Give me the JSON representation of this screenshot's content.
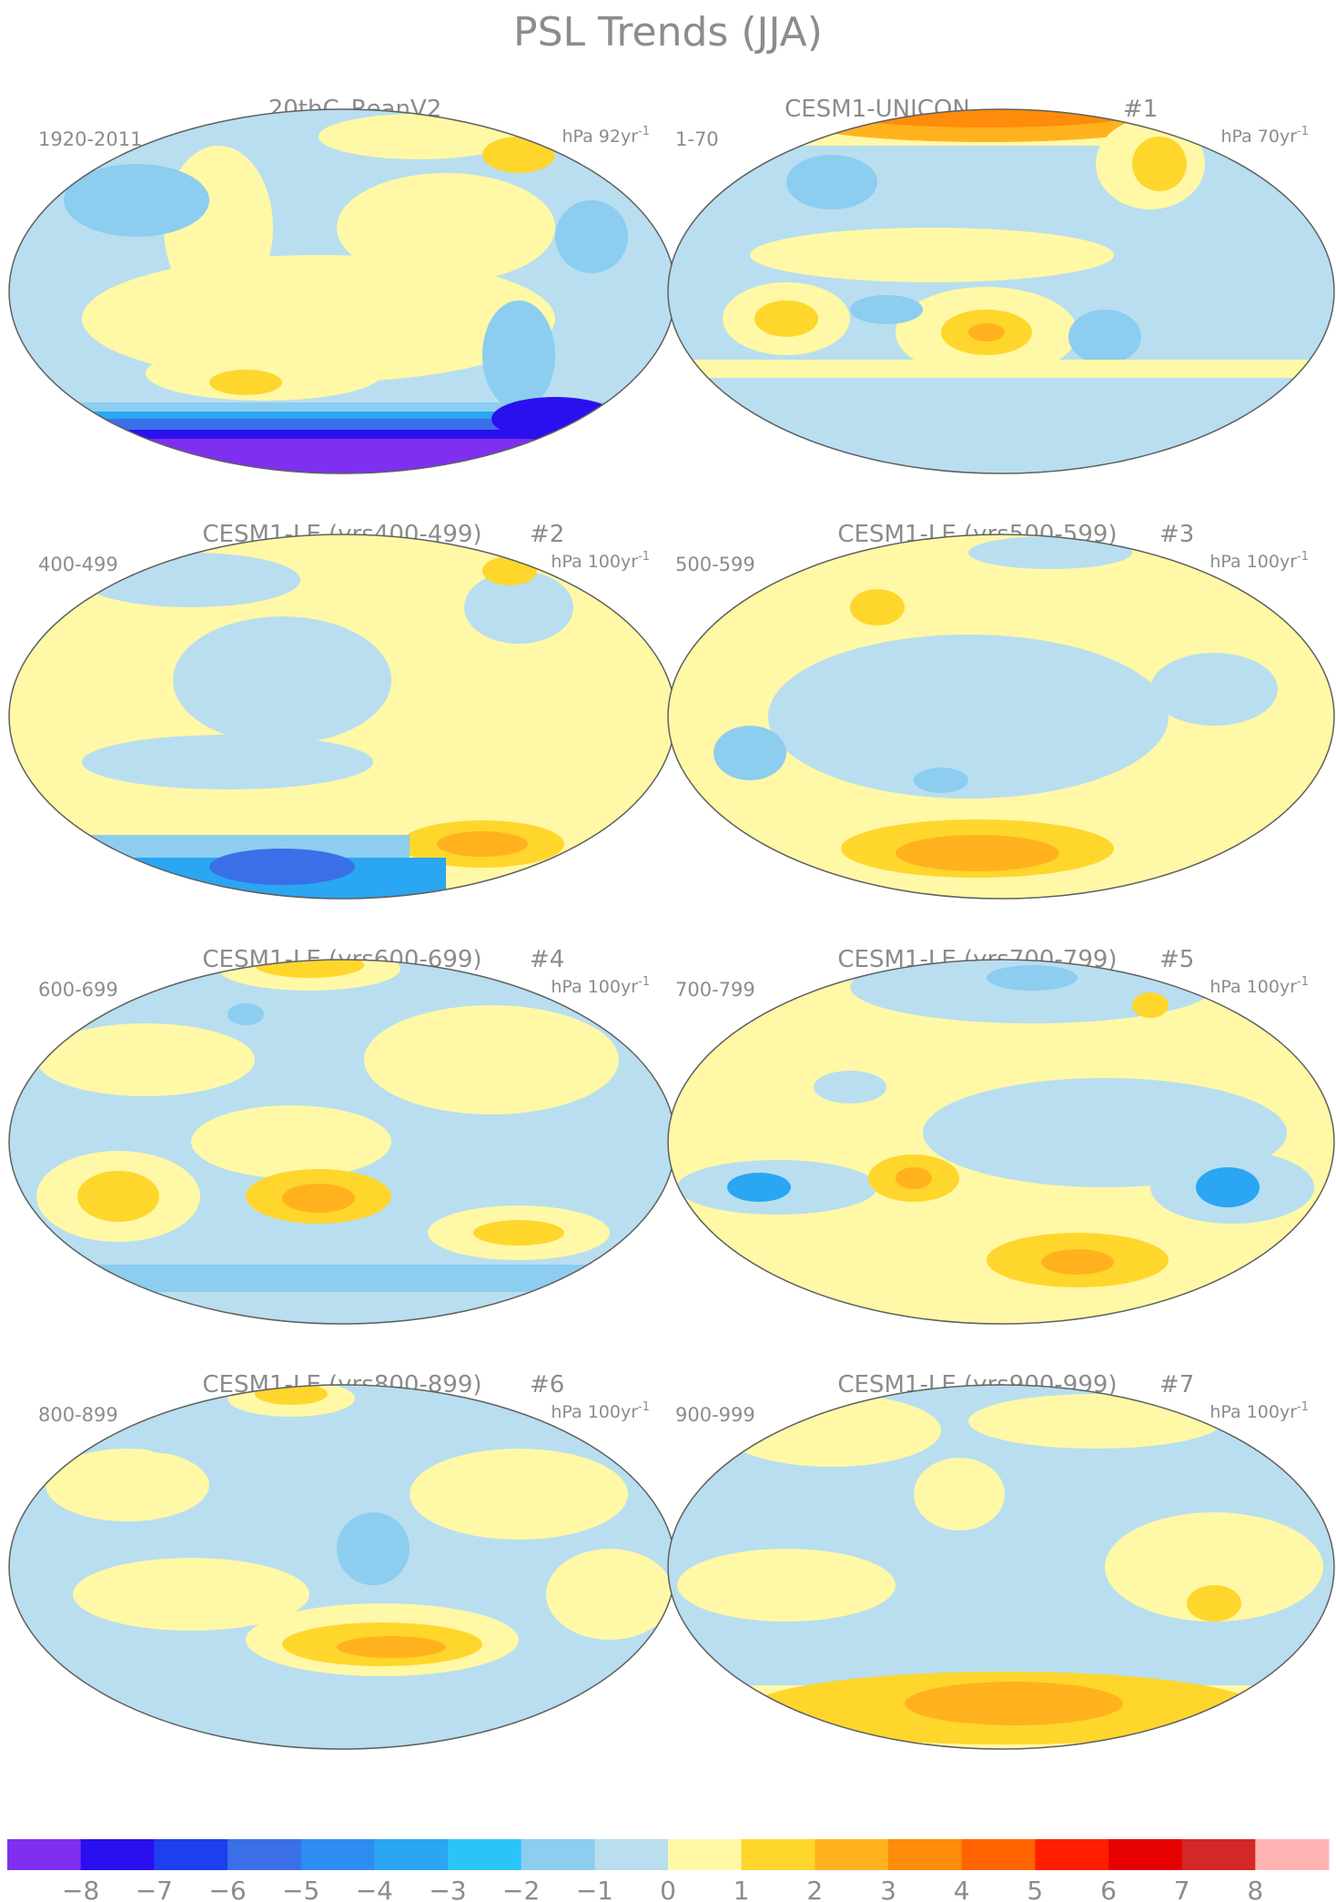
{
  "title": "PSL Trends (JJA)",
  "panels": [
    {
      "name": "20thC_ReanV2",
      "index": "",
      "period": "1920-2011",
      "units": "hPa 92yr",
      "units_exp": "-1"
    },
    {
      "name": "CESM1-UNICON",
      "index": "#1",
      "period": "1-70",
      "units": "hPa 70yr",
      "units_exp": "-1"
    },
    {
      "name": "CESM1-LE (yrs400-499)",
      "index": "#2",
      "period": "400-499",
      "units": "hPa 100yr",
      "units_exp": "-1"
    },
    {
      "name": "CESM1-LE (yrs500-599)",
      "index": "#3",
      "period": "500-599",
      "units": "hPa 100yr",
      "units_exp": "-1"
    },
    {
      "name": "CESM1-LE (yrs600-699)",
      "index": "#4",
      "period": "600-699",
      "units": "hPa 100yr",
      "units_exp": "-1"
    },
    {
      "name": "CESM1-LE (yrs700-799)",
      "index": "#5",
      "period": "700-799",
      "units": "hPa 100yr",
      "units_exp": "-1"
    },
    {
      "name": "CESM1-LE (yrs800-899)",
      "index": "#6",
      "period": "800-899",
      "units": "hPa 100yr",
      "units_exp": "-1"
    },
    {
      "name": "CESM1-LE (yrs900-999)",
      "index": "#7",
      "period": "900-999",
      "units": "hPa 100yr",
      "units_exp": "-1"
    }
  ],
  "colorbar": {
    "colors": [
      "#7f2ff0",
      "#2a10ee",
      "#1d3fee",
      "#3a6fe8",
      "#2f8cf0",
      "#2aa6f2",
      "#2cc4f8",
      "#8ccdf0",
      "#b8def0",
      "#fff8a6",
      "#ffd62c",
      "#ffb21e",
      "#ff8c0a",
      "#ff6400",
      "#ff1e00",
      "#e60000",
      "#d22828",
      "#ffb4b4"
    ],
    "labels": [
      "−8",
      "−7",
      "−6",
      "−5",
      "−4",
      "−3",
      "−2",
      "−1",
      "0",
      "1",
      "2",
      "3",
      "4",
      "5",
      "6",
      "7",
      "8"
    ]
  }
}
